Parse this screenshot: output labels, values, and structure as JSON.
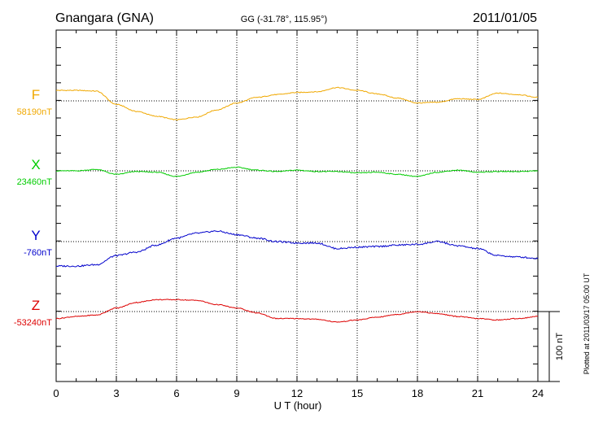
{
  "header": {
    "station": "Gnangara (GNA)",
    "coords": "GG (-31.78°, 115.95°)",
    "date": "2011/01/05"
  },
  "footer": {
    "plotted": "Plotted at 2011/03/17 05:00 UT"
  },
  "chart_data": {
    "type": "line",
    "xlabel": "U T (hour)",
    "xlim": [
      0,
      24
    ],
    "xticks": [
      "0",
      "3",
      "6",
      "9",
      "12",
      "15",
      "18",
      "21",
      "24"
    ],
    "grid": true,
    "scale_bar": {
      "label": "100 nT",
      "nT": 100
    },
    "series": [
      {
        "name": "F",
        "baseline_label": "58190nT",
        "color": "#f0a800",
        "x": [
          0,
          1,
          2,
          3,
          4,
          5,
          6,
          7,
          8,
          9,
          10,
          11,
          12,
          13,
          14,
          15,
          16,
          17,
          18,
          19,
          20,
          21,
          22,
          23,
          24
        ],
        "y": [
          15,
          15,
          14,
          -5,
          -15,
          -22,
          -27,
          -23,
          -13,
          -3,
          5,
          9,
          12,
          13,
          19,
          15,
          10,
          4,
          -3,
          -2,
          3,
          2,
          11,
          9,
          5
        ]
      },
      {
        "name": "X",
        "baseline_label": "23460nT",
        "color": "#00cc00",
        "x": [
          0,
          1,
          2,
          3,
          4,
          5,
          6,
          7,
          8,
          9,
          10,
          11,
          12,
          13,
          14,
          15,
          16,
          17,
          18,
          19,
          20,
          21,
          22,
          23,
          24
        ],
        "y": [
          0,
          0,
          2,
          -5,
          -1,
          -2,
          -8,
          -2,
          2,
          5,
          1,
          -1,
          1,
          -1,
          -1,
          -3,
          -2,
          -5,
          -8,
          -2,
          1,
          -2,
          -1,
          -1,
          0
        ]
      },
      {
        "name": "Y",
        "baseline_label": "-760nT",
        "color": "#0000cc",
        "x": [
          0,
          1,
          2,
          3,
          4,
          5,
          6,
          7,
          8,
          9,
          10,
          11,
          12,
          13,
          14,
          15,
          16,
          17,
          18,
          19,
          20,
          21,
          22,
          23,
          24
        ],
        "y": [
          -35,
          -35,
          -33,
          -20,
          -15,
          -5,
          5,
          12,
          15,
          10,
          5,
          0,
          -2,
          -2,
          -10,
          -8,
          -7,
          -5,
          -4,
          0,
          -6,
          -10,
          -20,
          -22,
          -24
        ]
      },
      {
        "name": "Z",
        "baseline_label": "-53240nT",
        "color": "#dd0000",
        "x": [
          0,
          1,
          2,
          3,
          4,
          5,
          6,
          7,
          8,
          9,
          10,
          11,
          12,
          13,
          14,
          15,
          16,
          17,
          18,
          19,
          20,
          21,
          22,
          23,
          24
        ],
        "y": [
          -10,
          -7,
          -5,
          5,
          13,
          17,
          17,
          16,
          10,
          5,
          -2,
          -10,
          -10,
          -11,
          -15,
          -12,
          -8,
          -4,
          0,
          -3,
          -7,
          -10,
          -12,
          -10,
          -7
        ]
      }
    ]
  }
}
